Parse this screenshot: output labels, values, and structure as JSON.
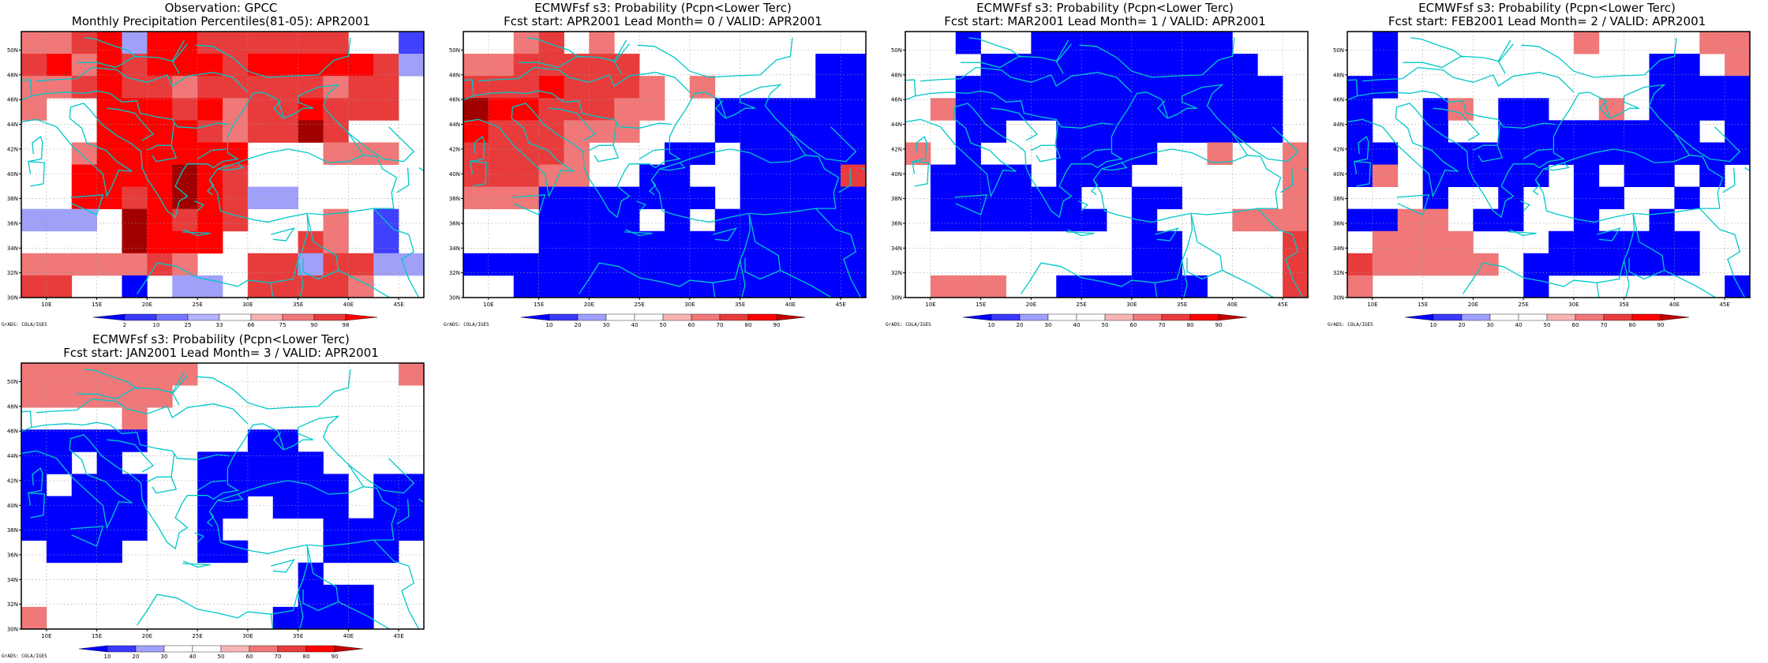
{
  "page": {
    "width": 2240,
    "height": 840
  },
  "longitudes": [
    "10E",
    "15E",
    "20E",
    "25E",
    "30E",
    "35E",
    "40E",
    "45E"
  ],
  "latitudes": [
    "50N",
    "48N",
    "46N",
    "44N",
    "42N",
    "40N",
    "38N",
    "36N",
    "34N",
    "32N",
    "30N"
  ],
  "colors": {
    "coast": "#00c8c8",
    "blue_levels": [
      "#0000ff",
      "#4040ff",
      "#a0a0f8"
    ],
    "red_levels": [
      "#f8b4b4",
      "#f07878",
      "#e83c3c",
      "#ff0000",
      "#a00000"
    ]
  },
  "credit": "GrADS: COLA/IGES",
  "panels": [
    {
      "id": "obs",
      "title1": "Observation: GPCC",
      "title2": "Monthly Precipitation Percentiles(81-05): APR2001",
      "colorbar": {
        "labels": [
          "2",
          "10",
          "25",
          "33",
          "66",
          "75",
          "90",
          "98"
        ],
        "scheme": "percentile"
      },
      "grid": [
        "r1 r1 r2 r3 b2 r3 r3 r2 r2 r2 r2 r2 r2 w w b1",
        "r2 r3 r1 r3 r2 r3 r3 r3 r2 r3 r3 r3 r3 r3 r2 b2",
        "r1 r1 r2 r3 r2 r2 r1 r2 r2 r2 r2 r2 r1 r2 r2 w",
        "r1 w w r3 r3 r3 r2 r3 r1 r2 r2 r3 r2 r2 r2 w",
        "w w w r3 r3 r3 r3 r2 r1 r2 r2 r4 r2 w w w",
        "w w r1 r3 r3 r3 r3 r3 r3 w w w r1 r1 r1 w",
        "w w r3 r3 r3 r3 r4 r3 r2 w w w w w w w",
        "w w r3 r3 r2 r3 r4 r3 r2 b2 b2 w w w w w",
        "b2 b2 b2 w r4 r3 r2 r3 r2 w w w r1 w b1 w",
        "w w w w r4 r3 r3 r3 w w w r2 r1 w b1 w",
        "r1 r1 r1 r1 r1 r2 r1 w w r2 r2 b2 r2 r2 b2 b2",
        "r2 r2 w w b0 w b2 b2 w r2 r2 r2 r2 r1 w w"
      ]
    },
    {
      "id": "lead0",
      "title1": "ECMWFsf s3: Probability (Pcpn<Lower Terc)",
      "title2": "Fcst start: APR2001   Lead Month= 0 / VALID: APR2001",
      "colorbar": {
        "labels": [
          "10",
          "20",
          "30",
          "40",
          "50",
          "60",
          "70",
          "80",
          "90"
        ],
        "scheme": "prob"
      },
      "grid": [
        "w w r1 r2 w r1 w w w w w w w w w w",
        "r1 r1 r2 r2 r2 r2 r2 w w w w w w w b0 b0",
        "r2 r2 r2 r3 r2 r2 r2 r1 w r1 w w w w b0 b0",
        "r4 r3 r3 r2 r2 r2 r1 r1 w w b0 b0 b0 b0 b0 b0",
        "r3 r2 r2 r2 r1 r1 r1 w w w b0 b0 b0 b0 b0 b0",
        "r2 r2 r2 r2 r1 w w w b0 b0 w b0 b0 b0 b0 b0",
        "r2 r2 r2 r1 r1 w w b0 b0 w w b0 b0 b0 b0 r2",
        "r1 r1 r1 b0 b0 b0 b0 b0 b0 b0 w b0 b0 b0 b0 b0",
        "w w w b0 b0 b0 b0 w b0 w b0 b0 b0 b0 b0 b0",
        "w w w b0 b0 b0 b0 b0 b0 b0 b0 b0 b0 b0 b0 b0",
        "b0 b0 b0 b0 b0 b0 b0 b0 b0 b0 b0 b0 b0 b0 b0 b0",
        "w w b0 b0 b0 b0 b0 b0 b0 b0 b0 b0 b0 b0 b0 b0"
      ]
    },
    {
      "id": "lead1",
      "title1": "ECMWFsf s3: Probability (Pcpn<Lower Terc)",
      "title2": "Fcst start: MAR2001   Lead Month= 1 / VALID: APR2001",
      "colorbar": {
        "labels": [
          "10",
          "20",
          "30",
          "40",
          "50",
          "60",
          "70",
          "80",
          "90"
        ],
        "scheme": "prob"
      },
      "grid": [
        "w w b0 w w b0 b0 b0 b0 b0 b0 b0 b0 w w w",
        "w w w b0 b0 b0 b0 b0 b0 b0 b0 b0 b0 b0 w w",
        "w w b0 b0 b0 b0 b0 b0 b0 b0 b0 b0 b0 b0 b0 w",
        "w r1 b0 b0 b0 b0 b0 b0 b0 b0 b0 b0 b0 b0 b0 w",
        "w w b0 b0 w w b0 b0 b0 b0 b0 b0 b0 b0 b0 w",
        "r1 w b0 w w w b0 b0 b0 b0 w w r1 w w r1",
        "w b0 b0 b0 b0 w b0 b0 b0 w w w w w w r1",
        "w b0 b0 b0 b0 b0 b0 w w b0 b0 w w w w r1",
        "w b0 b0 b0 b0 b0 b0 b0 w b0 w w w r1 r1 r1",
        "w w w w w w w w w b0 b0 w w w w r2",
        "w w w w w w w w w b0 b0 w w w w r2",
        "w r1 r1 r1 w w b0 b0 b0 b0 b0 b0 w w w r2"
      ]
    },
    {
      "id": "lead2",
      "title1": "ECMWFsf s3: Probability (Pcpn<Lower Terc)",
      "title2": "Fcst start: FEB2001   Lead Month= 2 / VALID: APR2001",
      "colorbar": {
        "labels": [
          "10",
          "20",
          "30",
          "40",
          "50",
          "60",
          "70",
          "80",
          "90"
        ],
        "scheme": "prob"
      },
      "grid": [
        "w b0 w w w w w w w r1 w w w w r1 r1",
        "w b0 w w w w w w w w w w b0 b0 w r1",
        "b0 b0 w w w w w w w w w w b0 b0 b0 b0",
        "b0 w w b0 r1 w b0 b0 w w r1 w b0 b0 b0 b0",
        "b0 w w b0 w w b0 b0 b0 b0 b0 b0 b0 b0 w b0",
        "b0 b0 w b0 b0 b0 b0 b0 b0 b0 b0 b0 b0 b0 b0 b0",
        "b0 r1 w b0 b0 b0 b0 b0 w b0 w b0 b0 w b0 w",
        "w w w b0 w w b0 w w b0 b0 w w b0 w w",
        "b0 b0 r1 r1 w b0 b0 w w b0 w w b0 w w w",
        "w r1 r1 r1 r1 w w w b0 b0 b0 b0 b0 b0 w w",
        "r2 r1 r1 r1 r1 r1 w b0 b0 b0 b0 b0 b0 b0 w w",
        "r1 w w w w w w b0 w w w w w w w b0"
      ]
    },
    {
      "id": "lead3",
      "title1": "ECMWFsf s3: Probability (Pcpn<Lower Terc)",
      "title2": "Fcst start: JAN2001   Lead Month= 3 / VALID: APR2001",
      "colorbar": {
        "labels": [
          "10",
          "20",
          "30",
          "40",
          "50",
          "60",
          "70",
          "80",
          "90"
        ],
        "scheme": "prob"
      },
      "grid": [
        "r1 r1 r1 r1 r1 r1 r1 w w w w w w w w r1",
        "r1 r1 r1 r1 r1 r1 w w w w w w w w w w",
        "w w w w r1 w w w w w w w w w w w",
        "b0 b0 b0 b0 b0 w w w w b0 b0 w w w w w",
        "b0 b0 w b0 w w w b0 b0 b0 b0 b0 w w w w",
        "b0 w b0 b0 b0 w w b0 b0 b0 b0 b0 b0 w b0 b0",
        "b0 b0 b0 b0 b0 w w b0 b0 w b0 b0 b0 w b0 b0",
        "b0 b0 b0 b0 b0 w w b0 w w w w b0 b0 b0 b0",
        "w b0 b0 b0 w w w b0 b0 w w w b0 b0 b0 w",
        "w w w w w w w w w w w b0 w w w w",
        "w w w w w w w w w w w b0 b0 b0 w w",
        "r1 w w w w w w w w w b0 b0 b0 b0 w w"
      ]
    }
  ]
}
